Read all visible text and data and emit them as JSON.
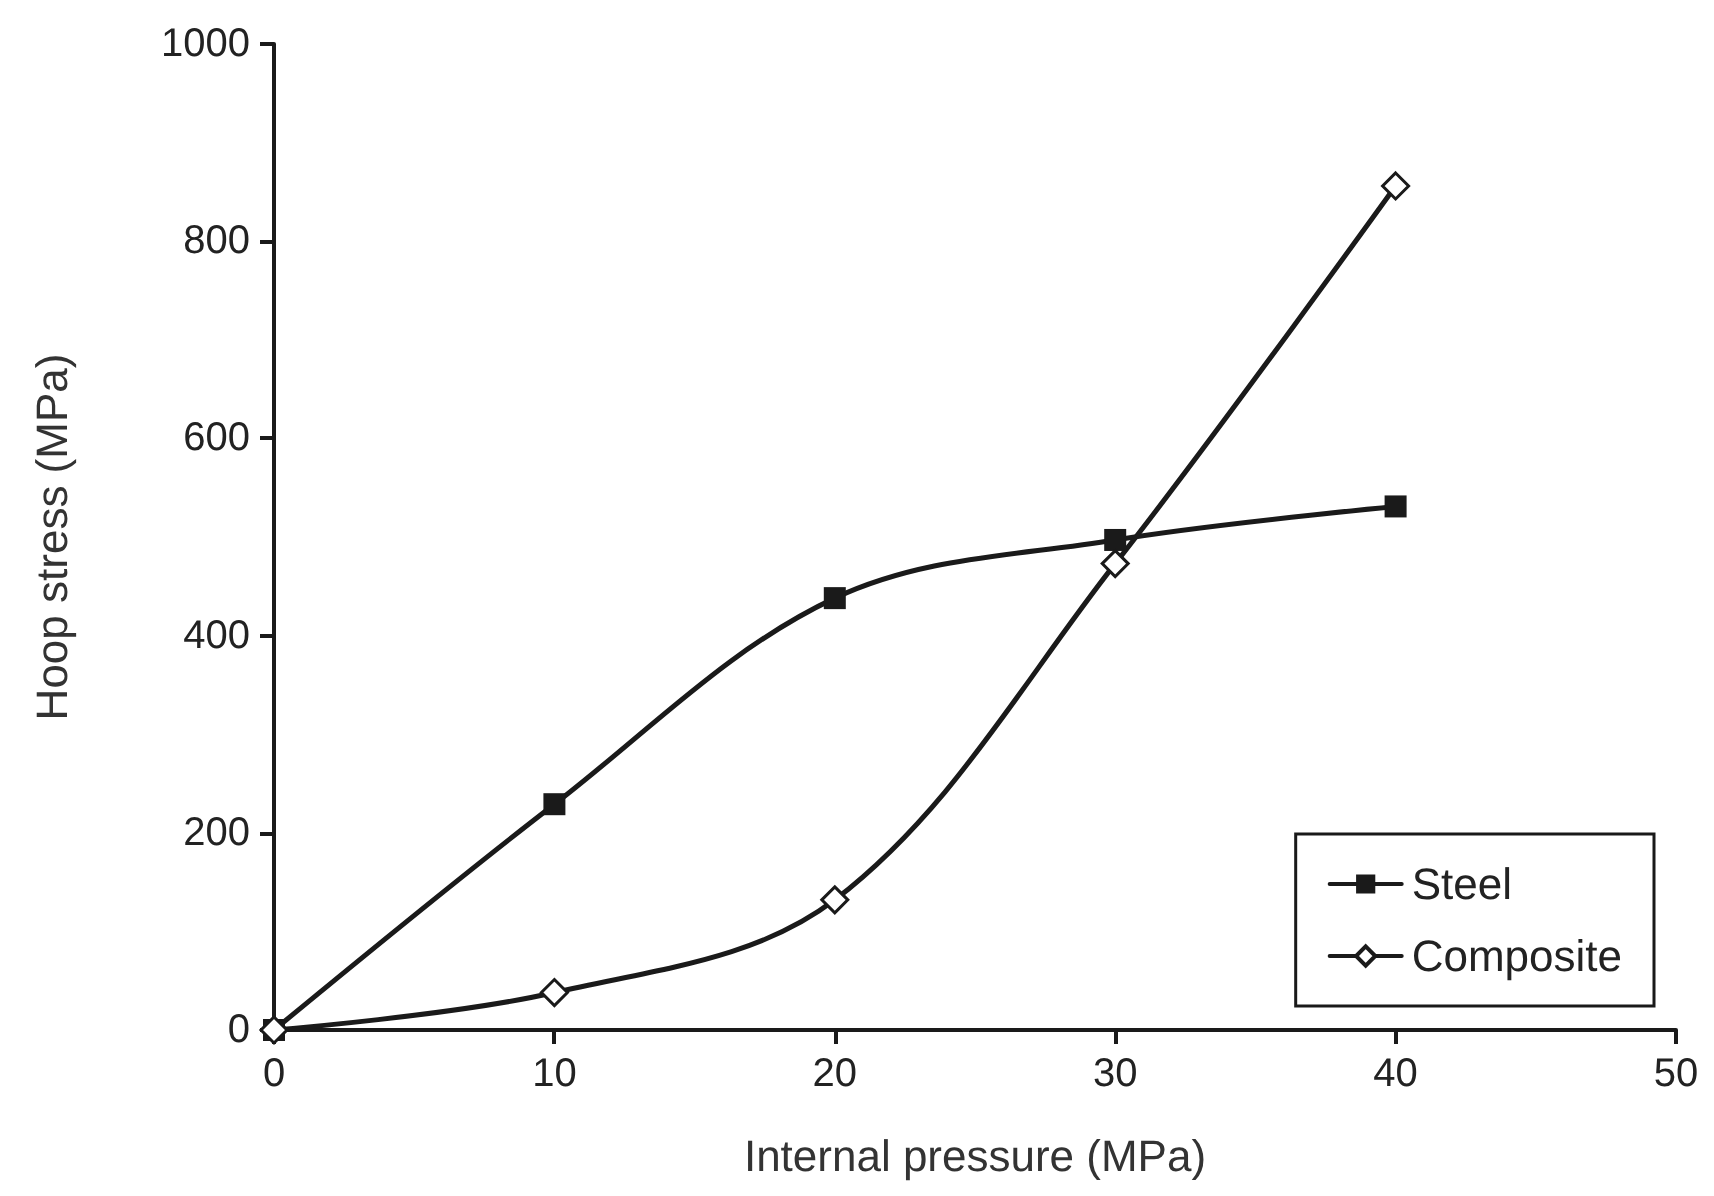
{
  "chart_data": {
    "type": "line",
    "xlabel": "Internal pressure (MPa)",
    "ylabel": "Hoop stress (MPa)",
    "xlim": [
      0,
      50
    ],
    "xticks": [
      0,
      10,
      20,
      30,
      40,
      50
    ],
    "ylim": [
      0,
      1000
    ],
    "yticks": [
      0,
      200,
      400,
      600,
      800,
      1000
    ],
    "grid": false,
    "legend": "bottom right",
    "line_style": "solid",
    "series": [
      {
        "name": "Steel",
        "color": "#1a1a1a",
        "marker": "square",
        "x": [
          0,
          10,
          20,
          30,
          40
        ],
        "values": [
          0,
          229,
          438,
          497,
          531
        ]
      },
      {
        "name": "Composite",
        "color": "#1a1a1a",
        "marker": "diamond",
        "x": [
          0,
          10,
          20,
          30,
          40
        ],
        "values": [
          0,
          38,
          132,
          473,
          856
        ]
      }
    ]
  }
}
